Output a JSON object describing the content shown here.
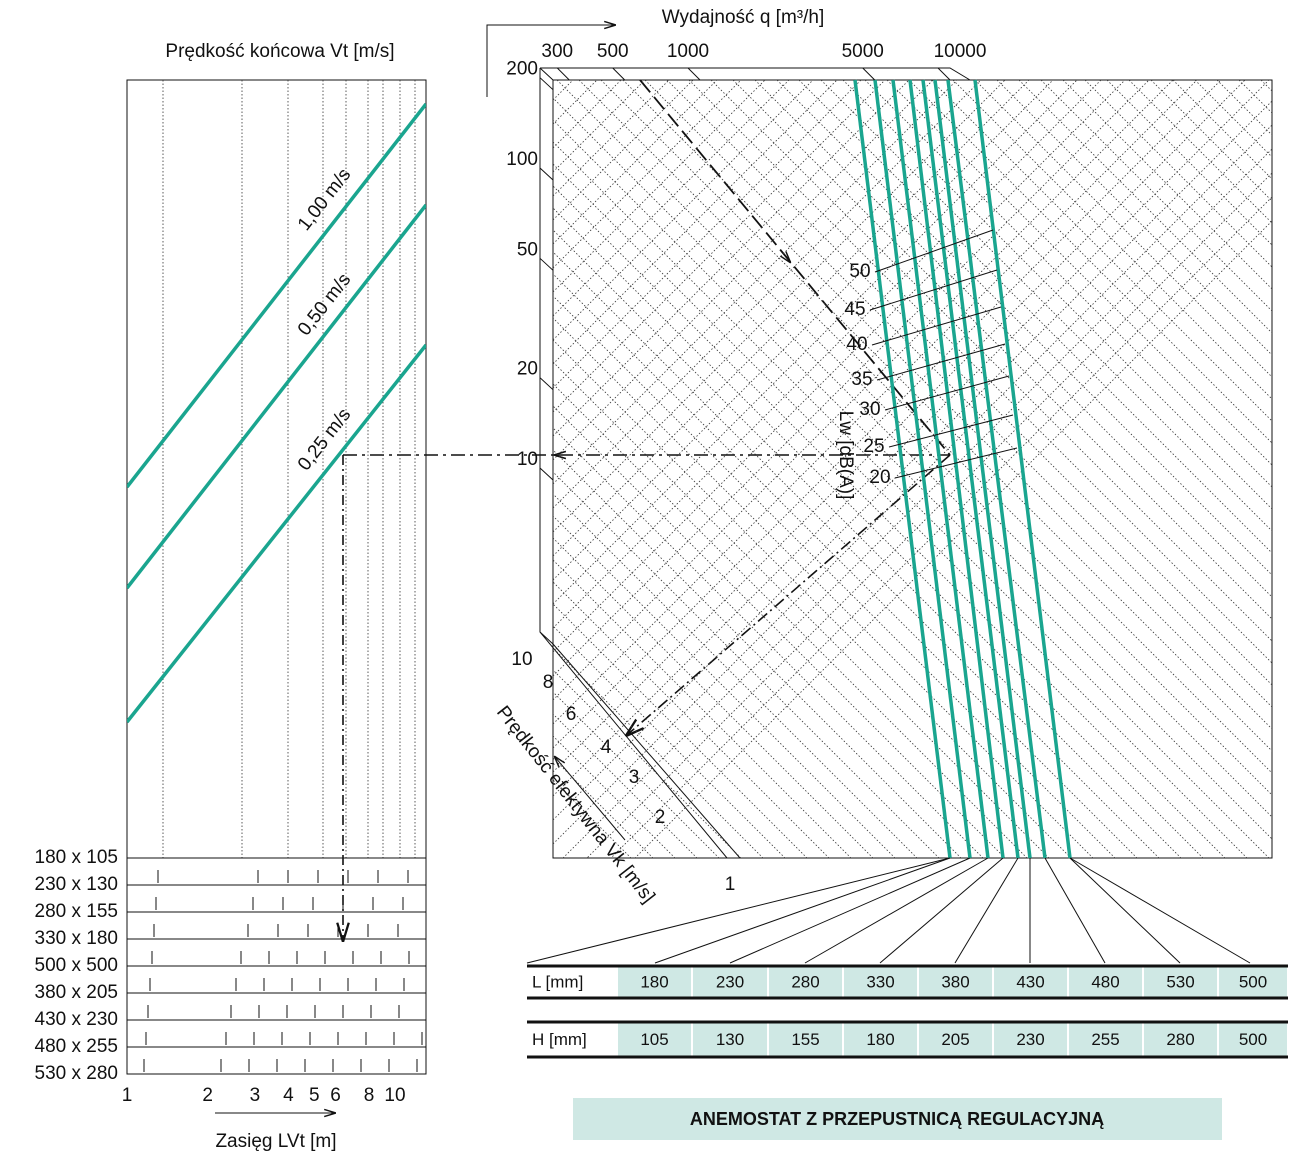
{
  "left_chart": {
    "title": "Prędkość końcowa Vt [m/s]",
    "velocity_labels": [
      "1,00 m/s",
      "0,50 m/s",
      "0,25 m/s"
    ],
    "sizes": [
      "180 x 105",
      "230 x 130",
      "280 x 155",
      "330 x 180",
      "500 x 500",
      "380 x 205",
      "430 x 230",
      "480 x 255",
      "530 x 280"
    ],
    "x_ticks": [
      1,
      2,
      3,
      4,
      5,
      6,
      8,
      10
    ],
    "x_label": "Zasięg LVt [m]"
  },
  "top_axis": {
    "label": "Wydajność q [m³/h]",
    "ticks": [
      300,
      500,
      1000,
      5000,
      10000
    ]
  },
  "left_axis": {
    "ticks": [
      200,
      100,
      50,
      20,
      10
    ]
  },
  "lw": {
    "label": "Lw [dB(A)]",
    "ticks": [
      50,
      45,
      40,
      35,
      30,
      25,
      20
    ]
  },
  "vk_axis": {
    "label": "Prędkość efektywna Vk [m/s]",
    "ticks": [
      10,
      8,
      6,
      4,
      3,
      2,
      1
    ]
  },
  "table": {
    "rows": [
      [
        "L  [mm]",
        "180",
        "230",
        "280",
        "330",
        "380",
        "430",
        "480",
        "530",
        "500"
      ],
      [
        "H [mm]",
        "105",
        "130",
        "155",
        "180",
        "205",
        "230",
        "255",
        "280",
        "500"
      ]
    ]
  },
  "caption": "ANEMOSTAT Z PRZEPUSTNICĄ REGULACYJNĄ"
}
